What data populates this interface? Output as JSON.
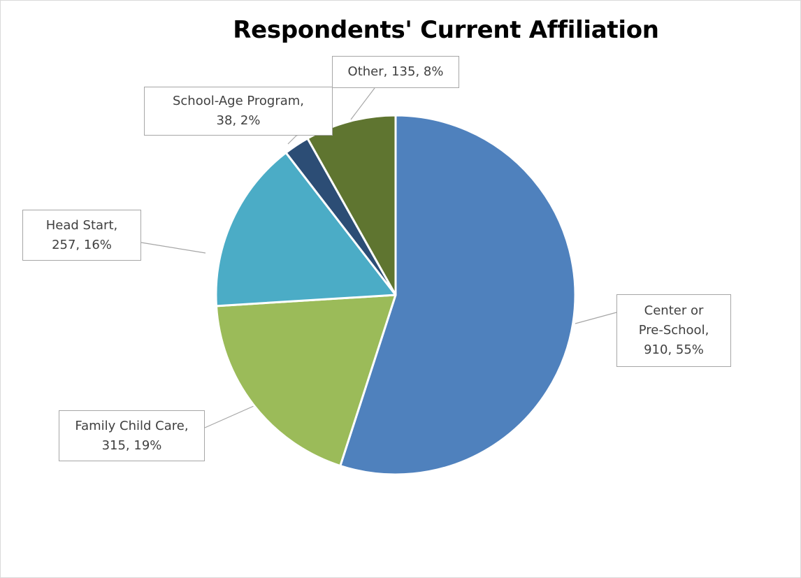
{
  "chart_data": {
    "type": "pie",
    "title": "Respondents' Current Affiliation",
    "slices": [
      {
        "label": "Center or Pre-School",
        "value": 910,
        "percent": 55,
        "color": "#4f81bd",
        "callout": "Center or\nPre-School,\n910, 55%"
      },
      {
        "label": "Family Child Care",
        "value": 315,
        "percent": 19,
        "color": "#9bbb59",
        "callout": "Family Child Care,\n315, 19%"
      },
      {
        "label": "Head Start",
        "value": 257,
        "percent": 16,
        "color": "#4bacc6",
        "callout": "Head Start,\n257, 16%"
      },
      {
        "label": "School-Age Program",
        "value": 38,
        "percent": 2,
        "color": "#2c4d75",
        "callout": "School-Age Program,\n38, 2%"
      },
      {
        "label": "Other",
        "value": 135,
        "percent": 8,
        "color": "#5f7530",
        "callout": "Other, 135,  8%"
      }
    ],
    "start_angle": "12 o'clock",
    "direction": "clockwise",
    "legend": "none"
  }
}
